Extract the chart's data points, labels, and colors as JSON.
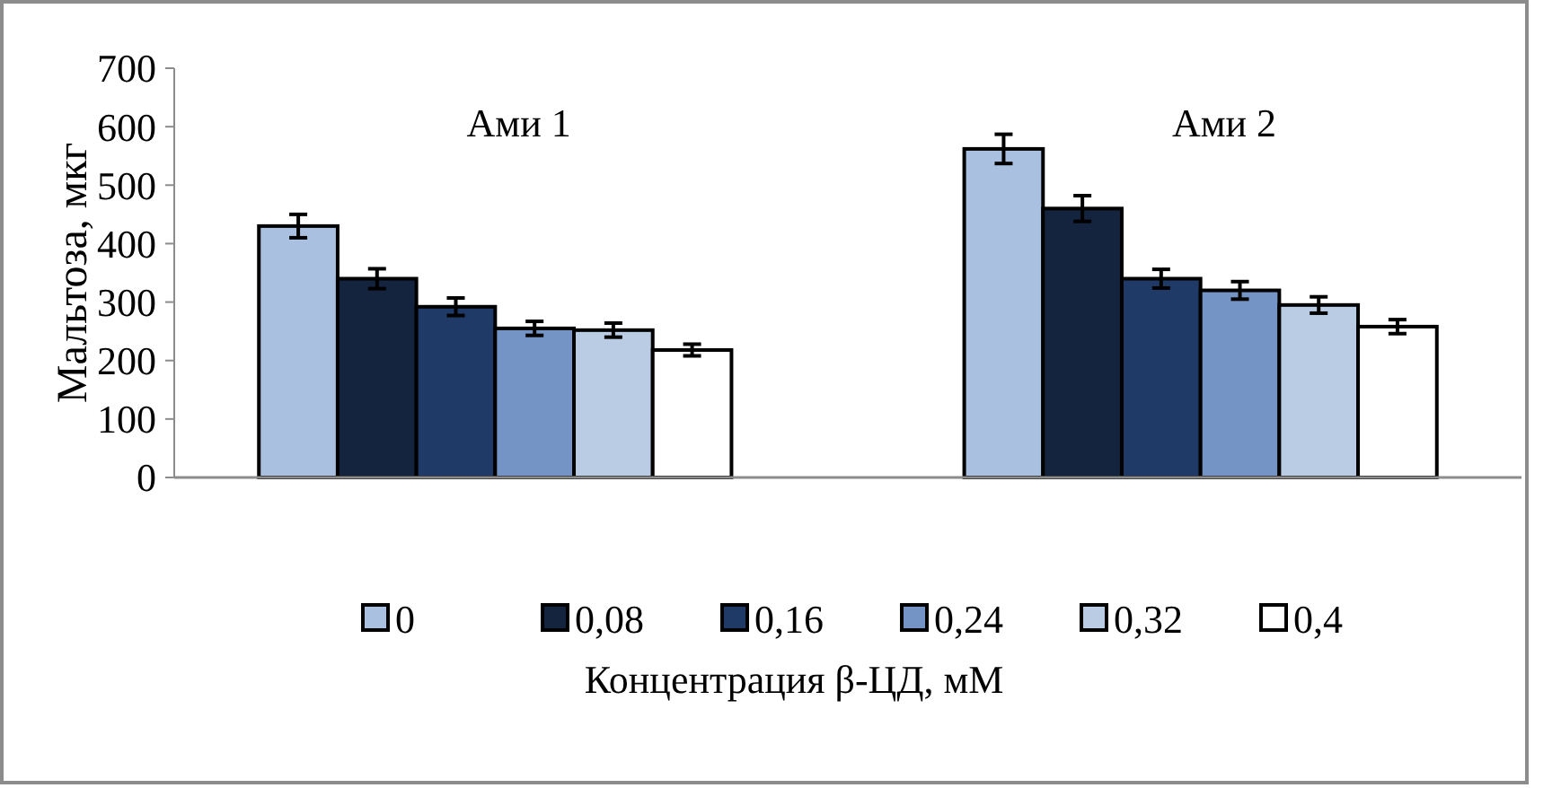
{
  "chart_data": {
    "type": "bar",
    "xlabel": "Концентрация β-ЦД, мМ",
    "ylabel": "Мальтоза, мкг",
    "categories": [
      "Ами 1",
      "Ами 2"
    ],
    "series": [
      {
        "name": "0",
        "color": "#a9c0e0",
        "values": [
          430,
          562
        ],
        "errors": [
          20,
          25
        ]
      },
      {
        "name": "0,08",
        "color": "#14243f",
        "values": [
          340,
          460
        ],
        "errors": [
          17,
          22
        ]
      },
      {
        "name": "0,16",
        "color": "#1f3a66",
        "values": [
          292,
          340
        ],
        "errors": [
          15,
          16
        ]
      },
      {
        "name": "0,24",
        "color": "#7394c4",
        "values": [
          255,
          320
        ],
        "errors": [
          12,
          15
        ]
      },
      {
        "name": "0,32",
        "color": "#b9cce4",
        "values": [
          252,
          295
        ],
        "errors": [
          12,
          14
        ]
      },
      {
        "name": "0,4",
        "color": "#ffffff",
        "values": [
          218,
          258
        ],
        "errors": [
          10,
          12
        ]
      }
    ],
    "ylim": [
      0,
      700
    ],
    "yticks": [
      0,
      100,
      200,
      300,
      400,
      500,
      600,
      700
    ],
    "grid": false,
    "legend": "bottom"
  }
}
